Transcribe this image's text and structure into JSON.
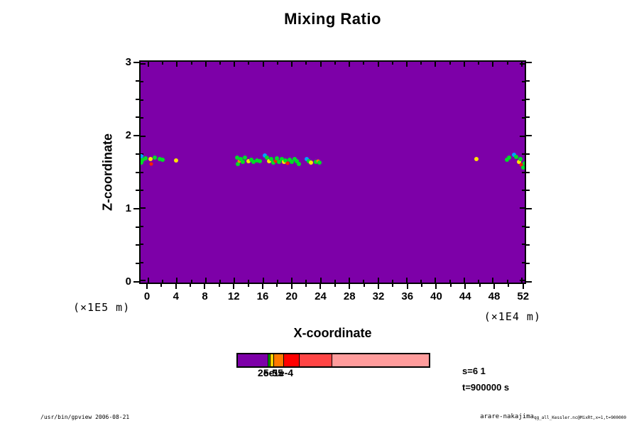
{
  "title": "Mixing Ratio",
  "chart_data": {
    "type": "scatter",
    "title": "Mixing Ratio",
    "xlabel": "X-coordinate",
    "ylabel": "Z-coordinate",
    "x_unit_label_left": "(×1E5 m)",
    "x_unit_label_right": "(×1E4 m)",
    "xlim": [
      -1.08,
      52.42
    ],
    "ylim": [
      -0.03,
      3.03
    ],
    "x_major_ticks": [
      0,
      4,
      8,
      12,
      16,
      20,
      24,
      28,
      32,
      36,
      40,
      44,
      48,
      52
    ],
    "x_minor_step": 2,
    "y_major_ticks": [
      0,
      1,
      2,
      3
    ],
    "y_minor_step": 0.25,
    "grid": false,
    "legend": "colorbar-bottom",
    "field_fill_color": "#7D00A8",
    "point_colors": {
      "g": "#00DC28",
      "c": "#00A0FF",
      "y": "#FFE400",
      "o": "#FF8200",
      "r": "#FF1E00"
    },
    "points": [
      [
        -1.0,
        1.72,
        "c"
      ],
      [
        -1.0,
        1.63,
        "g"
      ],
      [
        -0.8,
        1.67,
        "g"
      ],
      [
        -0.4,
        1.69,
        "g"
      ],
      [
        0.3,
        1.68,
        "y"
      ],
      [
        0.4,
        1.61,
        "r"
      ],
      [
        0.9,
        1.7,
        "g"
      ],
      [
        1.6,
        1.68,
        "g"
      ],
      [
        2.0,
        1.67,
        "g"
      ],
      [
        3.9,
        1.66,
        "y"
      ],
      [
        12.4,
        1.7,
        "g"
      ],
      [
        12.5,
        1.61,
        "g"
      ],
      [
        12.7,
        1.65,
        "o"
      ],
      [
        12.9,
        1.68,
        "g"
      ],
      [
        13.2,
        1.64,
        "g"
      ],
      [
        13.5,
        1.7,
        "g"
      ],
      [
        14.0,
        1.65,
        "y"
      ],
      [
        14.3,
        1.67,
        "g"
      ],
      [
        14.6,
        1.64,
        "g"
      ],
      [
        15.1,
        1.66,
        "g"
      ],
      [
        15.5,
        1.65,
        "g"
      ],
      [
        16.2,
        1.73,
        "c"
      ],
      [
        16.5,
        1.7,
        "g"
      ],
      [
        16.8,
        1.65,
        "y"
      ],
      [
        17.1,
        1.68,
        "g"
      ],
      [
        17.4,
        1.63,
        "g"
      ],
      [
        17.7,
        1.65,
        "r"
      ],
      [
        17.9,
        1.69,
        "g"
      ],
      [
        18.2,
        1.64,
        "g"
      ],
      [
        18.6,
        1.68,
        "g"
      ],
      [
        18.9,
        1.64,
        "y"
      ],
      [
        19.1,
        1.66,
        "g"
      ],
      [
        19.4,
        1.62,
        "r"
      ],
      [
        19.7,
        1.67,
        "g"
      ],
      [
        20.0,
        1.64,
        "g"
      ],
      [
        20.4,
        1.68,
        "g"
      ],
      [
        20.7,
        1.65,
        "g"
      ],
      [
        21.0,
        1.61,
        "g"
      ],
      [
        22.1,
        1.68,
        "c"
      ],
      [
        22.4,
        1.65,
        "g"
      ],
      [
        22.7,
        1.63,
        "y"
      ],
      [
        23.3,
        1.64,
        "g"
      ],
      [
        23.6,
        1.65,
        "o"
      ],
      [
        23.8,
        1.63,
        "g"
      ],
      [
        45.7,
        1.68,
        "y"
      ],
      [
        49.9,
        1.67,
        "g"
      ],
      [
        50.2,
        1.7,
        "g"
      ],
      [
        50.9,
        1.74,
        "c"
      ],
      [
        51.2,
        1.71,
        "g"
      ],
      [
        51.6,
        1.64,
        "y"
      ],
      [
        51.9,
        1.6,
        "r"
      ],
      [
        52.2,
        1.56,
        "g"
      ],
      [
        52.4,
        1.62,
        "g"
      ],
      [
        51.8,
        1.68,
        "g"
      ]
    ],
    "colorbar": {
      "segments": [
        {
          "color": "#7D00A8",
          "pct": 16.1
        },
        {
          "color": "#00A800",
          "pct": 1.1
        },
        {
          "color": "#FFD000",
          "pct": 1.8
        },
        {
          "color": "#FF7800",
          "pct": 5.1
        },
        {
          "color": "#FF0000",
          "pct": 8.1
        },
        {
          "color": "#FF4545",
          "pct": 17.2
        },
        {
          "color": "#FF9C9C",
          "pct": 50.6
        }
      ],
      "tick_labels": [
        {
          "text": "2e-5",
          "pct": 16.1
        },
        {
          "text": "5e-5",
          "pct": 19.0
        },
        {
          "text": "1e-4",
          "pct": 24.2
        }
      ]
    },
    "annotations": [
      "s=6 1",
      "t=900000 s"
    ]
  },
  "annotations": {
    "line1": "s=6 1",
    "line2": "t=900000 s"
  },
  "footer": {
    "left": "/usr/bin/gpview 2006-08-21",
    "right_name": "arare-nakajima",
    "right_detail": "qg_all_Kessler.nc@MixRt,x=1,t=900000"
  }
}
